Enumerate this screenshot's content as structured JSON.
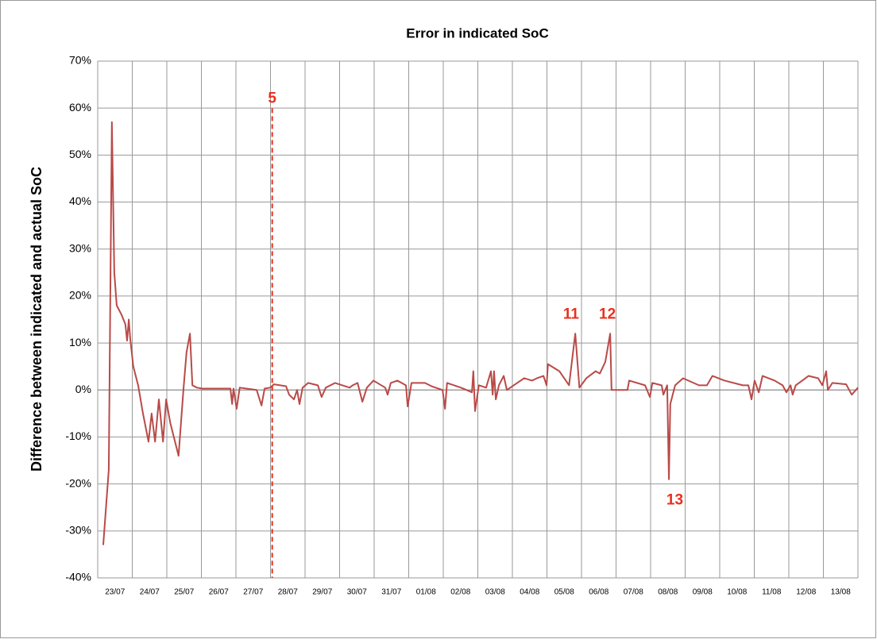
{
  "chart_data": {
    "type": "line",
    "title": "Error in indicated SoC",
    "y_label": "Difference between indicated and actual SoC",
    "categories": [
      "23/07",
      "24/07",
      "25/07",
      "26/07",
      "27/07",
      "28/07",
      "29/07",
      "30/07",
      "31/07",
      "01/08",
      "02/08",
      "03/08",
      "04/08",
      "05/08",
      "06/08",
      "07/08",
      "08/08",
      "09/08",
      "10/08",
      "11/08",
      "12/08",
      "13/08"
    ],
    "xlim": [
      0,
      22
    ],
    "xticks": [
      0,
      1,
      2,
      3,
      4,
      5,
      6,
      7,
      8,
      9,
      10,
      11,
      12,
      13,
      14,
      15,
      16,
      17,
      18,
      19,
      20,
      21,
      22
    ],
    "ylim": [
      -40,
      70
    ],
    "yticks": [
      {
        "value": -40,
        "label": "-40%"
      },
      {
        "value": -30,
        "label": "-30%"
      },
      {
        "value": -20,
        "label": "-20%"
      },
      {
        "value": -10,
        "label": "-10%"
      },
      {
        "value": 0,
        "label": "0%"
      },
      {
        "value": 10,
        "label": "10%"
      },
      {
        "value": 20,
        "label": "20%"
      },
      {
        "value": 30,
        "label": "30%"
      },
      {
        "value": 40,
        "label": "40%"
      },
      {
        "value": 50,
        "label": "50%"
      },
      {
        "value": 60,
        "label": "60%"
      },
      {
        "value": 70,
        "label": "70%"
      }
    ],
    "grid": true,
    "series": [
      {
        "color": "#b94a48",
        "x": [
          0.16,
          0.32,
          0.41,
          0.48,
          0.55,
          0.69,
          0.8,
          0.85,
          0.9,
          0.94,
          1.03,
          1.17,
          1.31,
          1.47,
          1.56,
          1.66,
          1.77,
          1.89,
          1.98,
          2.1,
          2.34,
          2.48,
          2.57,
          2.67,
          2.74,
          2.87,
          3.03,
          3.84,
          3.89,
          3.93,
          4.02,
          4.11,
          4.6,
          4.74,
          4.83,
          4.99,
          5.1,
          5.45,
          5.54,
          5.68,
          5.77,
          5.84,
          5.93,
          6.09,
          6.37,
          6.48,
          6.6,
          6.87,
          7.29,
          7.38,
          7.52,
          7.66,
          7.79,
          7.98,
          8.32,
          8.39,
          8.48,
          8.67,
          8.92,
          8.97,
          9.08,
          9.47,
          9.66,
          9.98,
          10.05,
          10.11,
          10.51,
          10.83,
          10.87,
          10.92,
          11.03,
          11.24,
          11.38,
          11.43,
          11.47,
          11.52,
          11.61,
          11.75,
          11.84,
          12.34,
          12.57,
          12.71,
          12.9,
          12.99,
          13.03,
          13.36,
          13.64,
          13.82,
          13.94,
          14.14,
          14.41,
          14.53,
          14.69,
          14.83,
          14.87,
          15.33,
          15.38,
          15.84,
          15.98,
          16.05,
          16.32,
          16.37,
          16.48,
          16.53,
          16.57,
          16.71,
          16.94,
          17.4,
          17.63,
          17.79,
          18.14,
          18.67,
          18.83,
          18.92,
          19.01,
          19.13,
          19.24,
          19.59,
          19.82,
          19.93,
          20.05,
          20.11,
          20.2,
          20.39,
          20.57,
          20.85,
          20.97,
          21.08,
          21.13,
          21.26,
          21.66,
          21.82,
          22
        ],
        "values": [
          -33,
          -17,
          57,
          25,
          18,
          16,
          14,
          10.5,
          15,
          11,
          5,
          1,
          -5,
          -11,
          -5,
          -11,
          -2,
          -11,
          -2,
          -7,
          -14,
          0,
          8,
          12,
          1,
          0.5,
          0.3,
          0.3,
          -3,
          0.3,
          -4,
          0.5,
          0,
          -3.3,
          0.3,
          0.5,
          1.2,
          0.8,
          -1,
          -2,
          0,
          -3,
          0.5,
          1.5,
          1,
          -1.5,
          0.5,
          1.5,
          0.5,
          1,
          1.5,
          -2.5,
          0.5,
          2,
          0.5,
          -1,
          1.5,
          2,
          1,
          -3.5,
          1.5,
          1.5,
          0.8,
          0,
          -4,
          1.5,
          0.5,
          -0.5,
          4,
          -4.5,
          1,
          0.5,
          4,
          -1,
          4,
          -2,
          1,
          3,
          0,
          2.5,
          2,
          2.5,
          3,
          1,
          5.5,
          4,
          1,
          12,
          0.5,
          2.5,
          4,
          3.5,
          6,
          12,
          0,
          0,
          2,
          1,
          -1.5,
          1.5,
          1,
          -1,
          1,
          -19,
          -3,
          1,
          2.5,
          1,
          1,
          3,
          2,
          1,
          1,
          -2,
          2,
          -0.5,
          3,
          2,
          1,
          -0.5,
          1,
          -1,
          1,
          2,
          3,
          2.5,
          1,
          4,
          0,
          1.5,
          1.2,
          -1,
          0.5
        ]
      }
    ],
    "annotations": [
      {
        "text": "5",
        "x": 5.05,
        "y": 62,
        "line_to": -40
      },
      {
        "text": "11",
        "x": 13.7,
        "y": 16
      },
      {
        "text": "12",
        "x": 14.75,
        "y": 16
      },
      {
        "text": "13",
        "x": 16.7,
        "y": -23.5
      }
    ]
  }
}
